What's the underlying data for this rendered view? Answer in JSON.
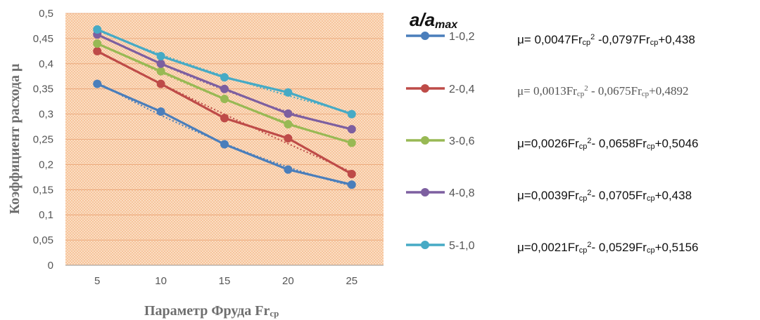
{
  "chart_data": {
    "type": "line",
    "x": [
      5,
      10,
      15,
      20,
      25
    ],
    "xlim": [
      2.5,
      27.5
    ],
    "ylim": [
      0,
      0.5
    ],
    "x_ticks": [
      "5",
      "10",
      "15",
      "20",
      "25"
    ],
    "y_ticks": [
      "0",
      "0,05",
      "0,1",
      "0,15",
      "0,2",
      "0,25",
      "0,3",
      "0,35",
      "0,4",
      "0,45",
      "0,5"
    ],
    "xlabel": "Параметр Фруда  Fr",
    "xlabel_sub": "cp",
    "ylabel": "Коэффициент расхода  μ",
    "legend_title": "a/a",
    "legend_title_sub": "max",
    "legend_position": "right",
    "plot_background": "#f9cfa8",
    "series": [
      {
        "name": "1-0,2",
        "color": "#4a7ebb",
        "values": [
          0.36,
          0.305,
          0.24,
          0.19,
          0.16
        ]
      },
      {
        "name": "2-0,4",
        "color": "#be4b48",
        "values": [
          0.425,
          0.36,
          0.292,
          0.252,
          0.181
        ]
      },
      {
        "name": "3-0,6",
        "color": "#98b954",
        "values": [
          0.44,
          0.385,
          0.33,
          0.28,
          0.243
        ]
      },
      {
        "name": "4-0,8",
        "color": "#7d5fa0",
        "values": [
          0.458,
          0.4,
          0.35,
          0.301,
          0.27
        ]
      },
      {
        "name": "5-1,0",
        "color": "#46aac5",
        "values": [
          0.468,
          0.415,
          0.373,
          0.343,
          0.3
        ]
      }
    ]
  },
  "equations": [
    {
      "pre": "μ= 0,0047Fr",
      "s1": "cp",
      "sup": "2",
      "mid": " -0,0797Fr",
      "s2": "cp",
      "post": "+0,438"
    },
    {
      "pre": "μ= 0,0013Fr",
      "s1": "cp",
      "sup": "2",
      "mid": " - 0,0675Fr",
      "s2": "cp",
      "post": "+0,4892"
    },
    {
      "pre": "μ=0,0026Fr",
      "s1": "cp",
      "sup": "2",
      "mid": "- 0,0658Fr",
      "s2": "cp",
      "post": "+0,5046"
    },
    {
      "pre": "μ=0,0039Fr",
      "s1": "cp",
      "sup": "2",
      "mid": "- 0,0705Fr",
      "s2": "cp",
      "post": "+0,438"
    },
    {
      "pre": "μ=0,0021Fr",
      "s1": "cp",
      "sup": "2",
      "mid": "- 0,0529Fr",
      "s2": "cp",
      "post": "+0,5156"
    }
  ]
}
